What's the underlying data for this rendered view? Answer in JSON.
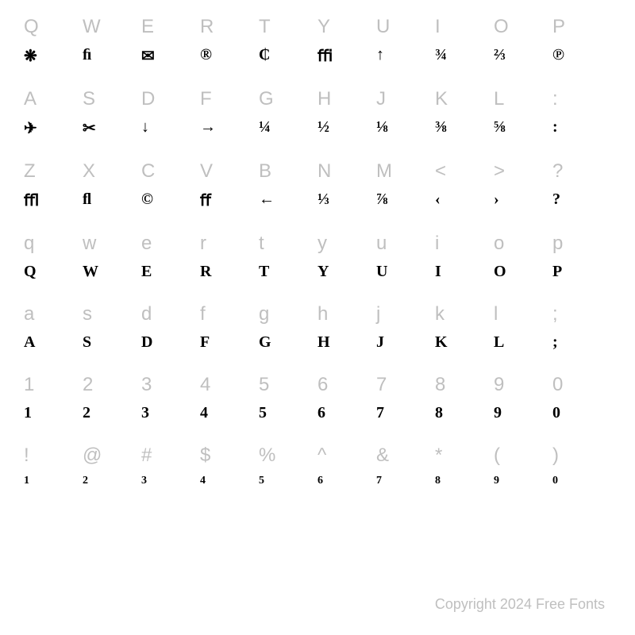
{
  "rows": [
    {
      "keys": [
        "Q",
        "W",
        "E",
        "R",
        "T",
        "Y",
        "U",
        "I",
        "O",
        "P"
      ],
      "glyphs": [
        "❋",
        "ﬁ",
        "✉",
        "®",
        "₵",
        "ﬃ",
        "↑",
        "¾",
        "⅔",
        "℗"
      ]
    },
    {
      "keys": [
        "A",
        "S",
        "D",
        "F",
        "G",
        "H",
        "J",
        "K",
        "L",
        ":"
      ],
      "glyphs": [
        "✈",
        "✂",
        "↓",
        "→",
        "¼",
        "½",
        "⅛",
        "⅜",
        "⅝",
        ":"
      ]
    },
    {
      "keys": [
        "Z",
        "X",
        "C",
        "V",
        "B",
        "N",
        "M",
        "<",
        ">",
        "?"
      ],
      "glyphs": [
        "ﬄ",
        "ﬂ",
        "©",
        "ﬀ",
        "←",
        "⅓",
        "⅞",
        "‹",
        "›",
        "?"
      ]
    },
    {
      "keys": [
        "q",
        "w",
        "e",
        "r",
        "t",
        "y",
        "u",
        "i",
        "o",
        "p"
      ],
      "glyphs": [
        "Q",
        "W",
        "E",
        "R",
        "T",
        "Y",
        "U",
        "I",
        "O",
        "P"
      ]
    },
    {
      "keys": [
        "a",
        "s",
        "d",
        "f",
        "g",
        "h",
        "j",
        "k",
        "l",
        ";"
      ],
      "glyphs": [
        "A",
        "S",
        "D",
        "F",
        "G",
        "H",
        "J",
        "K",
        "L",
        ";"
      ]
    },
    {
      "keys": [
        "1",
        "2",
        "3",
        "4",
        "5",
        "6",
        "7",
        "8",
        "9",
        "0"
      ],
      "glyphs": [
        "1",
        "2",
        "3",
        "4",
        "5",
        "6",
        "7",
        "8",
        "9",
        "0"
      ]
    },
    {
      "keys": [
        "!",
        "@",
        "#",
        "$",
        "%",
        "^",
        "&",
        "*",
        "(",
        ")"
      ],
      "glyphs": [
        "1",
        "2",
        "3",
        "4",
        "5",
        "6",
        "7",
        "8",
        "9",
        "0"
      ],
      "smaller": true
    }
  ],
  "footer_text": "Copyright 2024 Free Fonts",
  "colors": {
    "key_label": "#bfbfbf",
    "glyph": "#000000",
    "background": "#ffffff",
    "footer": "#bfbfbf"
  },
  "typography": {
    "key_fontsize": 24,
    "glyph_fontsize": 20,
    "glyph_fontsize_small": 14,
    "footer_fontsize": 18
  }
}
